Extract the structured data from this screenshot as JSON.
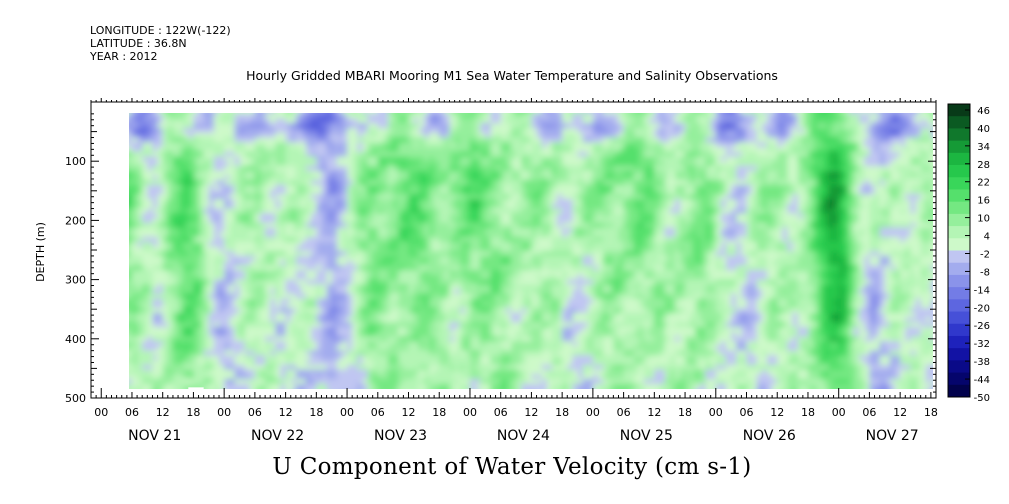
{
  "header": {
    "longitude": "LONGITUDE : 122W(-122)",
    "latitude": "LATITUDE : 36.8N",
    "year": "YEAR : 2012"
  },
  "chart_data": {
    "type": "heatmap",
    "title": "Hourly Gridded MBARI Mooring M1 Sea Water Temperature and Salinity Observations",
    "subtitle": "U Component of Water Velocity (cm s-1)",
    "ylabel": "DEPTH (m)",
    "xlabel": "",
    "y_inverted": true,
    "ylim": [
      0,
      500
    ],
    "yticks": [
      100,
      200,
      300,
      400,
      500
    ],
    "xlim_hours_from_nov21_00": [
      -2,
      163
    ],
    "data_extent_hours_from_nov21_00": [
      5,
      162
    ],
    "data_depth_range_m": [
      20,
      488
    ],
    "hour_tick_labels": [
      "00",
      "06",
      "12",
      "18"
    ],
    "day_labels": [
      "NOV 21",
      "NOV 22",
      "NOV 23",
      "NOV 24",
      "NOV 25",
      "NOV 26",
      "NOV 27"
    ],
    "colorbar": {
      "levels": [
        48,
        46,
        43,
        40,
        37,
        34,
        31,
        28,
        25,
        22,
        19,
        16,
        13,
        10,
        7,
        4,
        1,
        -2,
        -5,
        -8,
        -11,
        -14,
        -17,
        -20,
        -23,
        -26,
        -29,
        -32,
        -35,
        -38,
        -41,
        -44,
        -47,
        -50
      ],
      "tick_labels": [
        "46",
        "40",
        "34",
        "28",
        "22",
        "16",
        "10",
        "4",
        "-2",
        "-8",
        "-14",
        "-20",
        "-26",
        "-32",
        "-38",
        "-44",
        "-50"
      ],
      "colors": [
        "#083a18",
        "#0b5a22",
        "#10782c",
        "#159a36",
        "#1cb641",
        "#26c84c",
        "#39d65a",
        "#55e06c",
        "#74e882",
        "#95ef9c",
        "#b4f5b5",
        "#cdf9c9",
        "#c0c6f2",
        "#a3acee",
        "#8a93ea",
        "#737ce6",
        "#5d66e0",
        "#4650d8",
        "#3038cc",
        "#1e22bc",
        "#1212a4",
        "#0a0a88",
        "#05056c",
        "#02024c"
      ]
    },
    "field_description_levels_cm_s": {
      "strong_negative_band_depth_m": [
        20,
        60
      ],
      "green_column_centers_hours_from_nov21_00": [
        4,
        16,
        33,
        52,
        59,
        71,
        80,
        89,
        103,
        116,
        128,
        140,
        144,
        160
      ]
    }
  }
}
